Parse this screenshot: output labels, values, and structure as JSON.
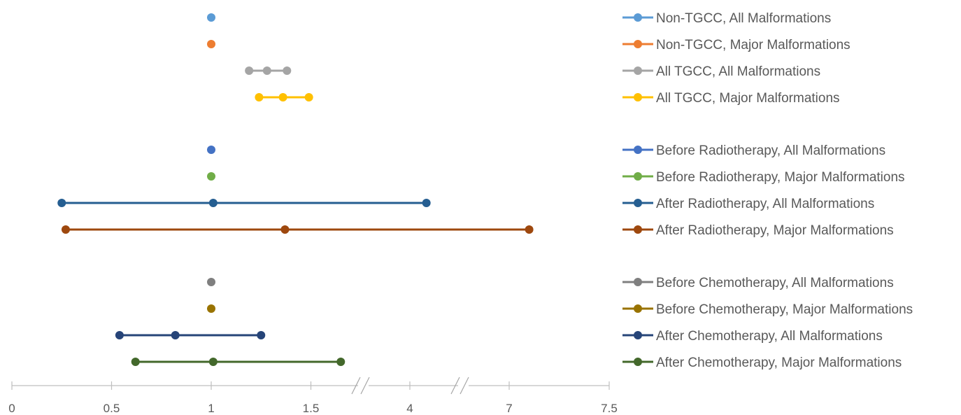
{
  "chart_data": {
    "type": "scatter",
    "title": "",
    "xlabel": "",
    "ylabel": "",
    "x_ticks": [
      "0",
      "0.5",
      "1",
      "1.5",
      "4",
      "7",
      "7.5"
    ],
    "axis_breaks": [
      "between 1.5 and 4",
      "between 4 and 7"
    ],
    "legend_position": "right",
    "grid": false,
    "series": [
      {
        "name": "Non-TGCC, All Malformations",
        "color": "#5B9BD5",
        "values": [
          1
        ]
      },
      {
        "name": "Non-TGCC, Major Malformations",
        "color": "#ED7D31",
        "values": [
          1
        ]
      },
      {
        "name": "All TGCC, All Malformations",
        "color": "#A5A5A5",
        "values": [
          1.19,
          1.28,
          1.38
        ]
      },
      {
        "name": "All TGCC, Major Malformations",
        "color": "#FFC000",
        "values": [
          1.24,
          1.36,
          1.49
        ]
      },
      {
        "name": "Before Radiotherapy, All Malformations",
        "color": "#4472C4",
        "values": [
          1
        ]
      },
      {
        "name": "Before Radiotherapy, Major Malformations",
        "color": "#70AD47",
        "values": [
          1
        ]
      },
      {
        "name": "After Radiotherapy, All Malformations",
        "color": "#255E91",
        "values": [
          0.25,
          1.01,
          4.5
        ]
      },
      {
        "name": "After Radiotherapy, Major Malformations",
        "color": "#9E480E",
        "values": [
          0.27,
          1.37,
          7.1
        ]
      },
      {
        "name": "Before Chemotherapy, All Malformations",
        "color": "#7F7F7F",
        "values": [
          1
        ]
      },
      {
        "name": "Before Chemotherapy, Major Malformations",
        "color": "#997300",
        "values": [
          1
        ]
      },
      {
        "name": "After Chemotherapy, All Malformations",
        "color": "#264478",
        "values": [
          0.54,
          0.82,
          1.25
        ]
      },
      {
        "name": "After Chemotherapy, Major Malformations",
        "color": "#43682B",
        "values": [
          0.62,
          1.01,
          1.65
        ]
      }
    ]
  }
}
